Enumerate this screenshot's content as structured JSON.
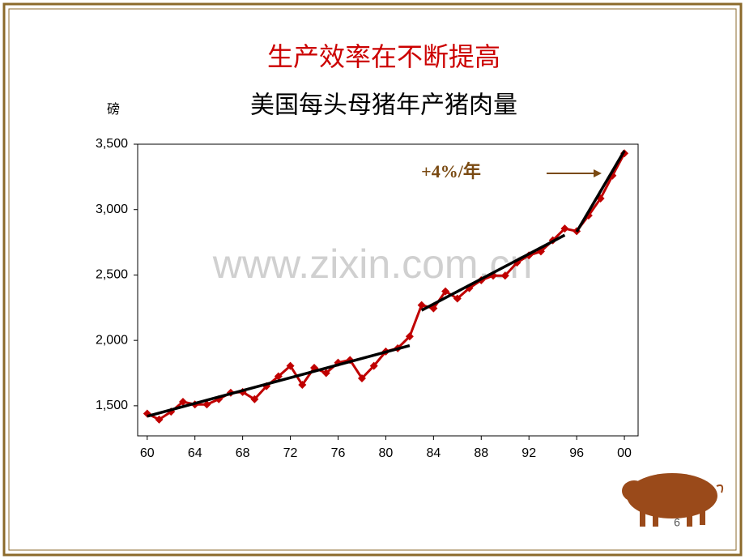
{
  "chart_data": {
    "type": "line",
    "title": "生产效率在不断提高",
    "subtitle": "美国每头母猪年产猪肉量",
    "y_label": "磅",
    "annotation": "+4%/年",
    "watermark": "www.zixin.com.cn",
    "page_number": "6",
    "x": [
      60,
      61,
      62,
      63,
      64,
      65,
      66,
      67,
      68,
      69,
      70,
      71,
      72,
      73,
      74,
      75,
      76,
      77,
      78,
      79,
      80,
      81,
      82,
      83,
      84,
      85,
      86,
      87,
      88,
      89,
      90,
      91,
      92,
      93,
      94,
      95,
      96,
      97,
      98,
      99,
      100
    ],
    "series": [
      {
        "color": "#c00000",
        "values": [
          1440,
          1395,
          1455,
          1530,
          1510,
          1510,
          1550,
          1600,
          1605,
          1550,
          1650,
          1725,
          1805,
          1660,
          1790,
          1750,
          1830,
          1850,
          1710,
          1805,
          1915,
          1940,
          2030,
          2270,
          2245,
          2375,
          2320,
          2400,
          2460,
          2495,
          2495,
          2595,
          2650,
          2680,
          2765,
          2855,
          2835,
          2955,
          3085,
          3260,
          3430
        ]
      }
    ],
    "trend_lines": [
      {
        "x": [
          60,
          82
        ],
        "values": [
          1420,
          1960
        ]
      },
      {
        "x": [
          83,
          95
        ],
        "values": [
          2230,
          2805
        ]
      },
      {
        "x": [
          96,
          100
        ],
        "values": [
          2830,
          3450
        ]
      }
    ],
    "xlim": [
      59.2,
      101.15
    ],
    "ylim": [
      1270,
      3500
    ],
    "xticks": [
      60,
      64,
      68,
      72,
      76,
      80,
      84,
      88,
      92,
      96,
      {
        "value": 100,
        "label": "00"
      }
    ],
    "yticks": [
      {
        "value": 1500,
        "label": "1,500"
      },
      {
        "value": 2000,
        "label": "2,000"
      },
      {
        "value": 2500,
        "label": "2,500"
      },
      {
        "value": 3000,
        "label": "3,000"
      },
      {
        "value": 3500,
        "label": "3,500"
      }
    ],
    "grid": false
  }
}
